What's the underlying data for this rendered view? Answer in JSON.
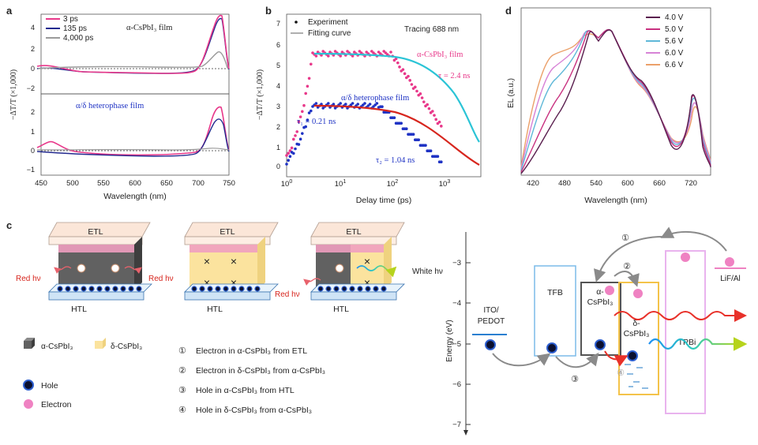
{
  "panels": {
    "a": "a",
    "b": "b",
    "c": "c",
    "d": "d"
  },
  "colors": {
    "pink": "#e8388a",
    "navy": "#232a8f",
    "gray": "#9b9b9b",
    "red": "#d7261e",
    "blue": "#1f33c4",
    "cyan": "#2bc4d6"
  },
  "panel_a": {
    "legend": [
      "3 ps",
      "135 ps",
      "4,000 ps"
    ],
    "top_label": "α-CsPbI₃ film",
    "bottom_label": "α/δ heterophase film",
    "ylabel": "−ΔT/T (×1,000)",
    "xlabel": "Wavelength (nm)",
    "xticks": [
      "450",
      "500",
      "550",
      "600",
      "650",
      "700",
      "750"
    ],
    "top_yticks": [
      "4",
      "2",
      "0",
      "−2"
    ],
    "bottom_yticks": [
      "2",
      "1",
      "0",
      "−1"
    ]
  },
  "panel_b": {
    "legend": [
      "Experiment",
      "Fitting curve"
    ],
    "tracing": "Tracing 688 nm",
    "ylabel": "−ΔT/T (×1,000)",
    "xlabel": "Delay time (ps)",
    "yticks": [
      "7",
      "6",
      "5",
      "4",
      "3",
      "2",
      "1",
      "0"
    ],
    "label_alpha": "α-CsPbI₃ film",
    "tau": "τ = 2.4 ns",
    "label_hetero": "α/δ heterophase film",
    "tau1": "τ₁ = 0.21 ns",
    "tau2": "τ₂ = 1.04 ns",
    "xticks": [
      "10",
      "10",
      "10",
      "10"
    ],
    "xexp": [
      "0",
      "1",
      "2",
      "3"
    ]
  },
  "panel_d": {
    "legend": [
      "4.0 V",
      "5.0 V",
      "5.6 V",
      "6.0 V",
      "6.6 V"
    ],
    "legend_colors": [
      "#5a1f4f",
      "#c8307f",
      "#5fb8d8",
      "#d783d6",
      "#eba06a"
    ],
    "ylabel": "EL (a.u.)",
    "xlabel": "Wavelength (nm)",
    "xticks": [
      "420",
      "480",
      "540",
      "600",
      "660",
      "720"
    ]
  },
  "panel_c": {
    "etl": "ETL",
    "htl": "HTL",
    "red_hv": "Red hν",
    "white_hv": "White hν",
    "legend_alpha": "α-CsPbI₃",
    "legend_delta": "δ-CsPbI₃",
    "legend_hole": "Hole",
    "legend_electron": "Electron",
    "steps": [
      {
        "num": "①",
        "text": "Electron in α-CsPbI₃ from ETL"
      },
      {
        "num": "②",
        "text": "Electron in δ-CsPbI₃ from α-CsPbI₃"
      },
      {
        "num": "③",
        "text": "Hole in α-CsPbI₃ from HTL"
      },
      {
        "num": "④",
        "text": "Hole in δ-CsPbI₃ from α-CsPbI₃"
      }
    ]
  },
  "energy": {
    "ylabel": "Energy (eV)",
    "ticks": [
      "−3",
      "−4",
      "−5",
      "−6",
      "−7"
    ],
    "ito": "ITO/",
    "pedot": "PEDOT",
    "tfb": "TFB",
    "alpha1": "α-",
    "alpha2": "CsPbI₃",
    "delta1": "δ-",
    "delta2": "CsPbI₃",
    "tpbi": "TPBi",
    "lif": "LiF/Al",
    "n1": "①",
    "n2": "②",
    "n3": "③",
    "n4": "④"
  }
}
